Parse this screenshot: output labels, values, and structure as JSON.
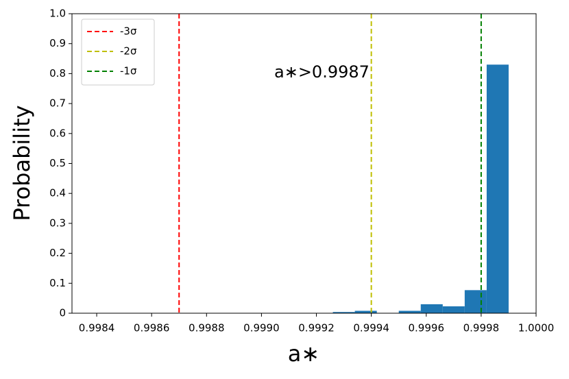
{
  "chart_data": {
    "type": "histogram",
    "xlabel": "a∗",
    "ylabel": "Probability",
    "annotation": "a∗>0.9987",
    "bins": [
      0.99926,
      0.99934,
      0.99942,
      0.9995,
      0.99958,
      0.99966,
      0.99974,
      0.99982,
      0.9999
    ],
    "values": [
      0.004,
      0.008,
      0,
      0.008,
      0.03,
      0.023,
      0.077,
      0.83
    ],
    "color": "#1f77b4",
    "vlines": [
      {
        "name": "-3σ",
        "value": 0.9987,
        "color": "#ff0000"
      },
      {
        "name": "-2σ",
        "value": 0.9994,
        "color": "#bfbf00"
      },
      {
        "name": "-1σ",
        "value": 0.9998,
        "color": "#008000"
      }
    ],
    "legend": "upper left",
    "xlim": [
      0.99831,
      1.0
    ],
    "xticks": [
      0.9984,
      0.9986,
      0.9988,
      {
        "value": 0.999,
        "label": "0.9990"
      },
      0.9992,
      0.9994,
      0.9996,
      0.9998,
      {
        "value": 1.0,
        "label": "1.0000"
      }
    ],
    "ylim": [
      0,
      1
    ],
    "yticks": [
      0,
      0.1,
      0.2,
      0.3,
      0.4,
      0.5,
      0.6,
      0.7,
      0.8,
      0.9,
      {
        "value": 1,
        "label": "1.0"
      }
    ]
  }
}
